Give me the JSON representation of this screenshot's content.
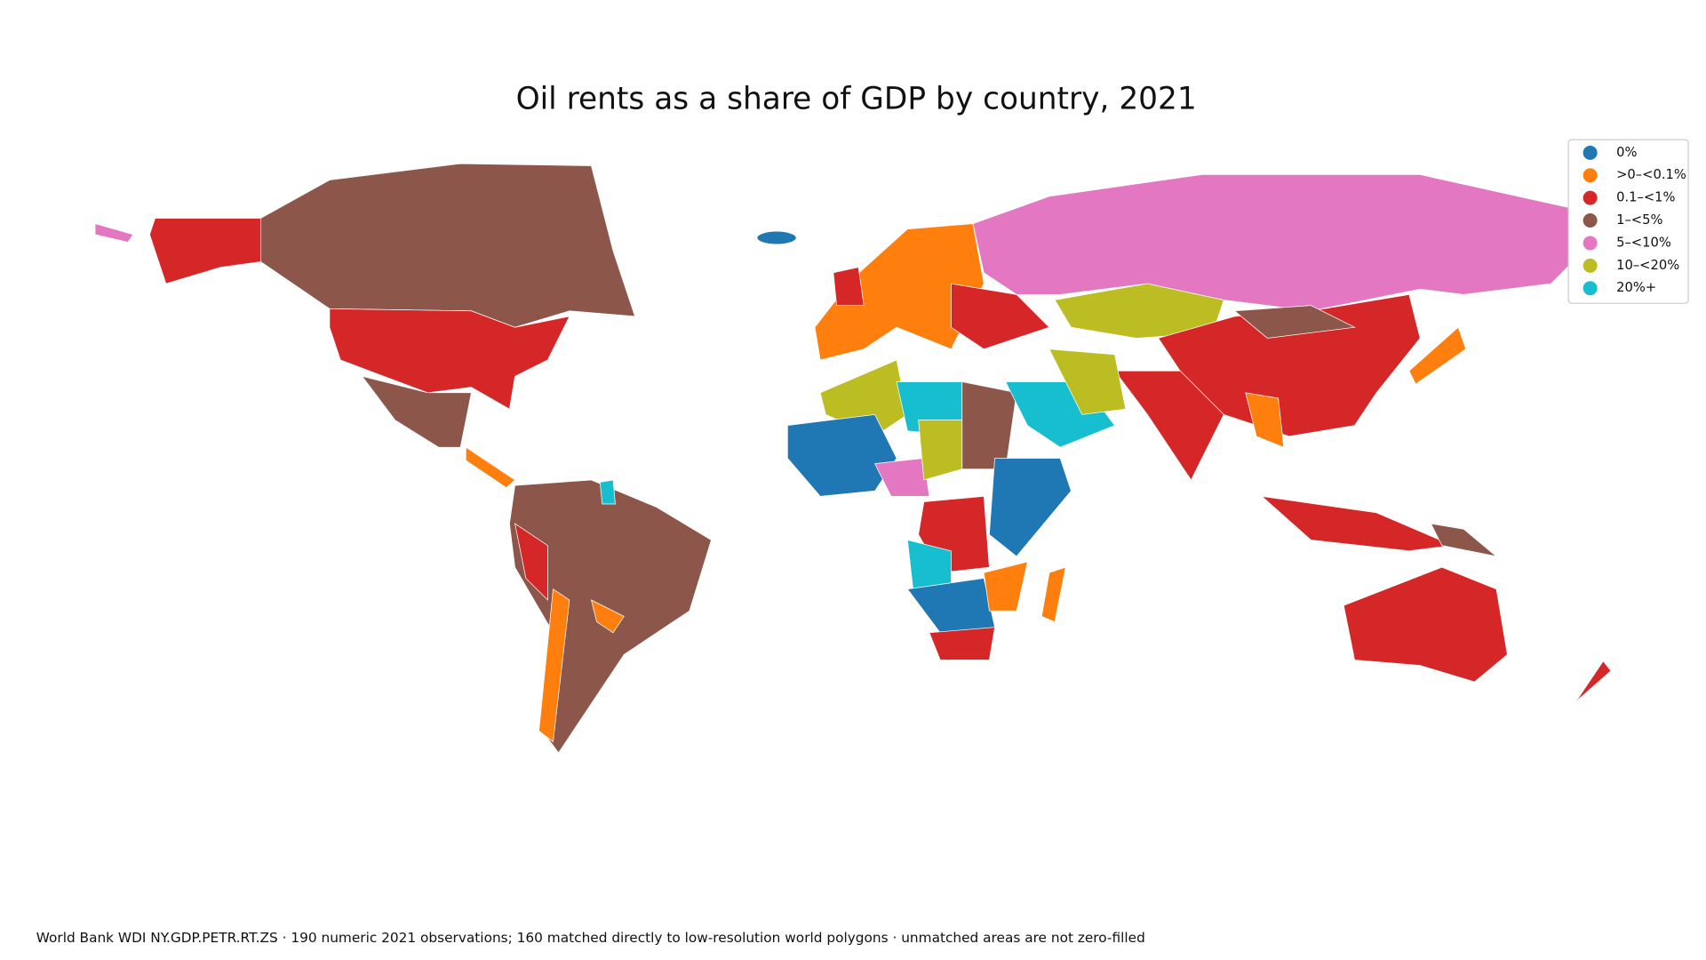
{
  "title": "Oil rents as a share of GDP by country, 2021",
  "legend": {
    "items": [
      {
        "label": "0%",
        "color": "#1f77b4"
      },
      {
        "label": ">0–<0.1%",
        "color": "#ff7f0e"
      },
      {
        "label": "0.1–<1%",
        "color": "#d62728"
      },
      {
        "label": "1–<5%",
        "color": "#8c564b"
      },
      {
        "label": "5–<10%",
        "color": "#e377c2"
      },
      {
        "label": "10–<20%",
        "color": "#bcbd22"
      },
      {
        "label": "20%+",
        "color": "#17becf"
      }
    ]
  },
  "footnote": "World Bank WDI NY.GDP.PETR.RT.ZS · 190 numeric 2021 observations; 160 matched directly to low-resolution world polygons · unmatched areas are not zero-filled"
}
